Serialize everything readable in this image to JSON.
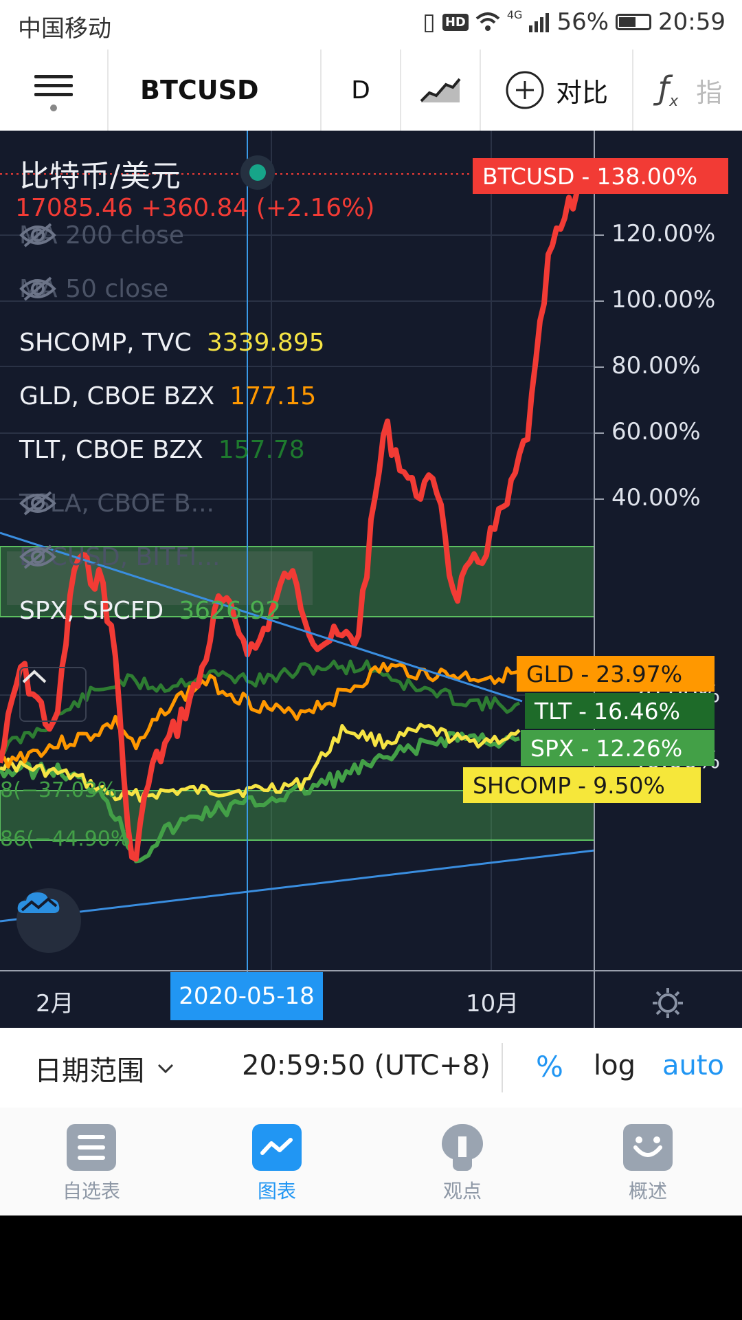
{
  "status_bar": {
    "carrier": "中国移动",
    "network": "4G",
    "battery": "56%",
    "time": "20:59",
    "hd": "HD"
  },
  "toolbar": {
    "symbol": "BTCUSD",
    "interval": "D",
    "compare_label": "对比",
    "fx_label": "ƒ",
    "indicator_label": "指"
  },
  "legend": {
    "title": "比特币/美元",
    "price_line": "17085.46 +360.84 (+2.16%)",
    "items": [
      {
        "name": "MA 200 close",
        "value": "",
        "hidden": true
      },
      {
        "name": "MA 50 close",
        "value": "",
        "hidden": true
      },
      {
        "name": "SHCOMP, TVC",
        "value": "3339.895",
        "hidden": false,
        "color": "#f6e444"
      },
      {
        "name": "GLD, CBOE BZX",
        "value": "177.15",
        "hidden": false,
        "color": "#ff9800"
      },
      {
        "name": "TLT, CBOE BZX",
        "value": "157.78",
        "hidden": false,
        "color": "#1e7a2e"
      },
      {
        "name": "TSLA, CBOE B...",
        "value": "",
        "hidden": true
      },
      {
        "name": "BTCUSD, BITFI...",
        "value": "",
        "hidden": true
      },
      {
        "name": "SPX, SPCFD",
        "value": "3626.92",
        "hidden": false,
        "color": "#4caf50"
      }
    ]
  },
  "chart": {
    "y_axis_labels": [
      "120.00%",
      "100.00%",
      "80.00%",
      "60.00%",
      "40.00%",
      "−20.00%",
      "−40.00%"
    ],
    "x_axis_labels": [
      "2月",
      "10月"
    ],
    "crosshair_date": "2020-05-18",
    "side_labels": [
      "8(−37.03%",
      "86(−44.90%"
    ],
    "series_tags": [
      {
        "name": "BTCUSD",
        "value": "138.00%",
        "bg": "#f23b35",
        "fg": "#ffffff"
      },
      {
        "name": "GLD",
        "value": "23.97%",
        "bg": "#ff9800",
        "fg": "#1a1a1a"
      },
      {
        "name": "TLT",
        "value": "16.46%",
        "bg": "#1e6b29",
        "fg": "#ffffff"
      },
      {
        "name": "SPX",
        "value": "12.26%",
        "bg": "#43a047",
        "fg": "#ffffff"
      },
      {
        "name": "SHCOMP",
        "value": "9.50%",
        "bg": "#f6e73a",
        "fg": "#1a1a1a"
      }
    ]
  },
  "range_bar": {
    "date_range_label": "日期范围",
    "time": "20:59:50 (UTC+8)",
    "percent": "%",
    "log": "log",
    "auto": "auto"
  },
  "tabbar": {
    "items": [
      {
        "label": "自选表"
      },
      {
        "label": "图表"
      },
      {
        "label": "观点"
      },
      {
        "label": "概述"
      }
    ]
  },
  "colors": {
    "accent": "#2196f3",
    "chart_bg": "#141a2b",
    "btc": "#f23b35",
    "gld": "#ff9800",
    "tlt": "#1e7a2e",
    "spx": "#4caf50",
    "shcomp": "#f6e444"
  }
}
